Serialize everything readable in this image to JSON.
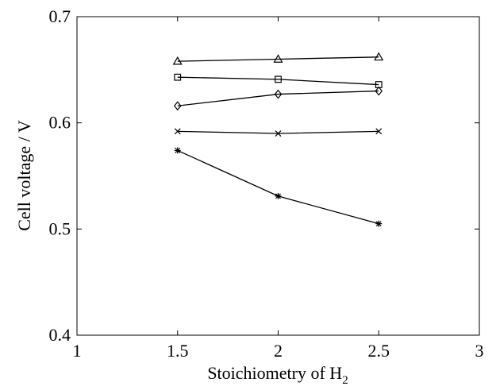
{
  "chart_data": {
    "type": "line",
    "title": "",
    "xlabel": "Stoichiometry of H",
    "xlabel_subscript": "2",
    "ylabel": "Cell voltage / V",
    "xlim": [
      1,
      3
    ],
    "ylim": [
      0.4,
      0.7
    ],
    "xticks": [
      1,
      1.5,
      2,
      2.5,
      3
    ],
    "xtick_labels": [
      "1",
      "1.5",
      "2",
      "2.5",
      "3"
    ],
    "yticks": [
      0.4,
      0.5,
      0.6,
      0.7
    ],
    "ytick_labels": [
      "0.4",
      "0.5",
      "0.6",
      "0.7"
    ],
    "grid": false,
    "legend": "none",
    "x": [
      1.5,
      2,
      2.5
    ],
    "series": [
      {
        "marker": "triangle",
        "values": [
          0.658,
          0.66,
          0.662
        ]
      },
      {
        "marker": "square",
        "values": [
          0.643,
          0.641,
          0.636
        ]
      },
      {
        "marker": "diamond",
        "values": [
          0.616,
          0.627,
          0.63
        ]
      },
      {
        "marker": "x",
        "values": [
          0.592,
          0.59,
          0.592
        ]
      },
      {
        "marker": "asterisk",
        "values": [
          0.574,
          0.531,
          0.505
        ]
      }
    ],
    "colors": {
      "line": "#000000",
      "axes": "#000000",
      "background": "#ffffff"
    }
  }
}
